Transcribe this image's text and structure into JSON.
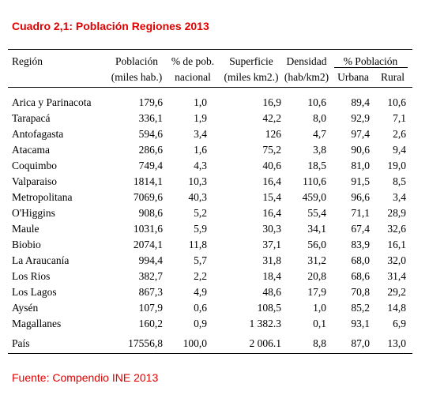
{
  "title": "Cuadro 2,1: Población Regiones 2013",
  "table": {
    "header_top": [
      "Región",
      "Población",
      "% de pob.",
      "Superficie",
      "Densidad",
      "% Población"
    ],
    "header_bottom": [
      "(miles hab.)",
      "nacional",
      "(miles km2.)",
      "(hab/km2)",
      "Urbana",
      "Rural"
    ],
    "rows": [
      [
        "Arica y Parinacota",
        "179,6",
        "1,0",
        "16,9",
        "10,6",
        "89,4",
        "10,6"
      ],
      [
        "Tarapacá",
        "336,1",
        "1,9",
        "42,2",
        "8,0",
        "92,9",
        "7,1"
      ],
      [
        "Antofagasta",
        "594,6",
        "3,4",
        "126",
        "4,7",
        "97,4",
        "2,6"
      ],
      [
        "Atacama",
        "286,6",
        "1,6",
        "75,2",
        "3,8",
        "90,6",
        "9,4"
      ],
      [
        "Coquimbo",
        "749,4",
        "4,3",
        "40,6",
        "18,5",
        "81,0",
        "19,0"
      ],
      [
        "Valparaiso",
        "1814,1",
        "10,3",
        "16,4",
        "110,6",
        "91,5",
        "8,5"
      ],
      [
        "Metropolitana",
        "7069,6",
        "40,3",
        "15,4",
        "459,0",
        "96,6",
        "3,4"
      ],
      [
        "O'Higgins",
        "908,6",
        "5,2",
        "16,4",
        "55,4",
        "71,1",
        "28,9"
      ],
      [
        "Maule",
        "1031,6",
        "5,9",
        "30,3",
        "34,1",
        "67,4",
        "32,6"
      ],
      [
        "Biobio",
        "2074,1",
        "11,8",
        "37,1",
        "56,0",
        "83,9",
        "16,1"
      ],
      [
        "La Araucanía",
        "994,4",
        "5,7",
        "31,8",
        "31,2",
        "68,0",
        "32,0"
      ],
      [
        "Los Rios",
        "382,7",
        "2,2",
        "18,4",
        "20,8",
        "68,6",
        "31,4"
      ],
      [
        "Los Lagos",
        "867,3",
        "4,9",
        "48,6",
        "17,9",
        "70,8",
        "29,2"
      ],
      [
        "Aysén",
        "107,9",
        "0,6",
        "108,5",
        "1,0",
        "85,2",
        "14,8"
      ],
      [
        "Magallanes",
        "160,2",
        "0,9",
        "1 382.3",
        "0,1",
        "93,1",
        "6,9"
      ]
    ],
    "total": [
      "País",
      "17556,8",
      "100,0",
      "2 006.1",
      "8,8",
      "87,0",
      "13,0"
    ]
  },
  "source": "Fuente: Compendio INE 2013"
}
